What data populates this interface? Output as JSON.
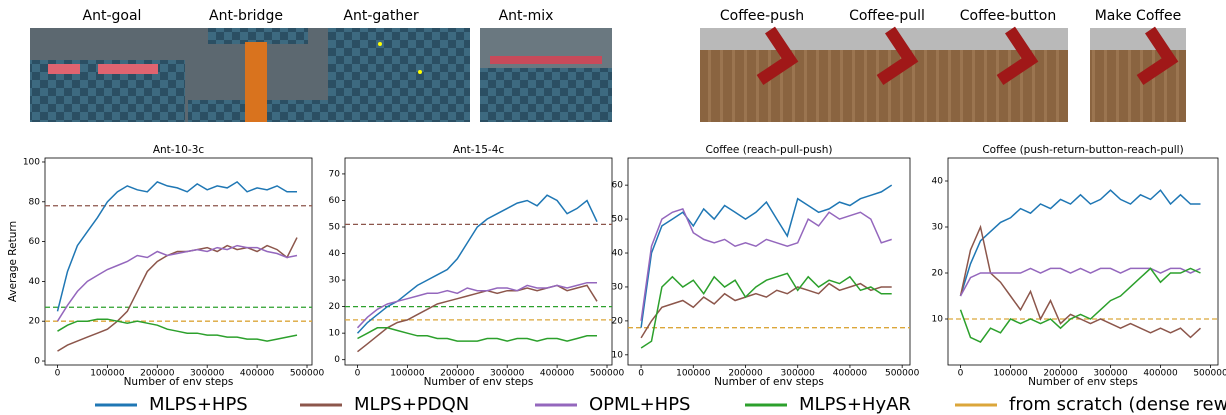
{
  "panels": [
    "Ant-goal",
    "Ant-bridge",
    "Ant-gather",
    "Ant-mix",
    "Coffee-push",
    "Coffee-pull",
    "Coffee-button",
    "Make Coffee"
  ],
  "legend": [
    {
      "name": "MLPS+HPS",
      "color": "#1f77b4"
    },
    {
      "name": "MLPS+PDQN",
      "color": "#8c564b"
    },
    {
      "name": "OPML+HPS",
      "color": "#9467bd"
    },
    {
      "name": "MLPS+HyAR",
      "color": "#2ca02c"
    },
    {
      "name": "from scratch (dense rew)",
      "color": "#dba63a"
    }
  ],
  "chart_data": [
    {
      "type": "line",
      "title": "Ant-10-3c",
      "xlabel": "Number of env steps",
      "ylabel": "Average Return",
      "x": [
        0,
        20000,
        40000,
        60000,
        80000,
        100000,
        120000,
        140000,
        160000,
        180000,
        200000,
        220000,
        240000,
        260000,
        280000,
        300000,
        320000,
        340000,
        360000,
        380000,
        400000,
        420000,
        440000,
        460000,
        480000
      ],
      "xlim": [
        -25000,
        510000
      ],
      "xticks": [
        0,
        100000,
        200000,
        300000,
        400000,
        500000
      ],
      "ylim": [
        -2,
        102
      ],
      "yticks": [
        0,
        20,
        40,
        60,
        80,
        100
      ],
      "series": [
        {
          "color": "#1f77b4",
          "values": [
            25,
            45,
            58,
            65,
            72,
            80,
            85,
            88,
            86,
            85,
            90,
            88,
            87,
            85,
            89,
            86,
            88,
            87,
            90,
            85,
            87,
            86,
            88,
            85,
            85
          ]
        },
        {
          "color": "#8c564b",
          "values": [
            5,
            8,
            10,
            12,
            14,
            16,
            20,
            25,
            35,
            45,
            50,
            53,
            55,
            55,
            56,
            57,
            55,
            58,
            56,
            57,
            55,
            58,
            56,
            52,
            62
          ]
        },
        {
          "color": "#9467bd",
          "values": [
            20,
            28,
            35,
            40,
            43,
            46,
            48,
            50,
            53,
            52,
            55,
            53,
            54,
            55,
            56,
            55,
            57,
            56,
            58,
            57,
            57,
            55,
            54,
            52,
            53
          ]
        },
        {
          "color": "#2ca02c",
          "values": [
            15,
            18,
            20,
            20,
            21,
            21,
            20,
            19,
            20,
            19,
            18,
            16,
            15,
            14,
            14,
            13,
            13,
            12,
            12,
            11,
            11,
            10,
            11,
            12,
            13
          ]
        }
      ],
      "reference_lines": [
        {
          "value": 78,
          "color": "#8c564b"
        },
        {
          "value": 27,
          "color": "#2ca02c"
        },
        {
          "value": 20,
          "color": "#dba63a"
        }
      ]
    },
    {
      "type": "line",
      "title": "Ant-15-4c",
      "xlabel": "Number of env steps",
      "x": [
        0,
        20000,
        40000,
        60000,
        80000,
        100000,
        120000,
        140000,
        160000,
        180000,
        200000,
        220000,
        240000,
        260000,
        280000,
        300000,
        320000,
        340000,
        360000,
        380000,
        400000,
        420000,
        440000,
        460000,
        480000
      ],
      "xlim": [
        -25000,
        510000
      ],
      "xticks": [
        0,
        100000,
        200000,
        300000,
        400000,
        500000
      ],
      "ylim": [
        -2,
        76
      ],
      "yticks": [
        0,
        10,
        20,
        30,
        40,
        50,
        60,
        70
      ],
      "series": [
        {
          "color": "#1f77b4",
          "values": [
            10,
            14,
            17,
            20,
            22,
            25,
            28,
            30,
            32,
            34,
            38,
            44,
            50,
            53,
            55,
            57,
            59,
            60,
            58,
            62,
            60,
            55,
            57,
            60,
            52
          ]
        },
        {
          "color": "#8c564b",
          "values": [
            3,
            6,
            9,
            12,
            14,
            15,
            17,
            19,
            21,
            22,
            23,
            24,
            25,
            26,
            25,
            26,
            26,
            27,
            26,
            27,
            28,
            26,
            27,
            28,
            22
          ]
        },
        {
          "color": "#9467bd",
          "values": [
            12,
            16,
            19,
            21,
            22,
            23,
            24,
            25,
            25,
            26,
            25,
            27,
            26,
            26,
            27,
            27,
            26,
            28,
            27,
            27,
            28,
            27,
            28,
            29,
            29
          ]
        },
        {
          "color": "#2ca02c",
          "values": [
            8,
            10,
            12,
            12,
            11,
            10,
            9,
            9,
            8,
            8,
            7,
            7,
            7,
            8,
            8,
            7,
            8,
            8,
            7,
            8,
            8,
            7,
            8,
            9,
            9
          ]
        }
      ],
      "reference_lines": [
        {
          "value": 51,
          "color": "#8c564b"
        },
        {
          "value": 20,
          "color": "#2ca02c"
        },
        {
          "value": 15,
          "color": "#dba63a"
        }
      ]
    },
    {
      "type": "line",
      "title": "Coffee (reach-pull-push)",
      "xlabel": "Number of env steps",
      "x": [
        0,
        20000,
        40000,
        60000,
        80000,
        100000,
        120000,
        140000,
        160000,
        180000,
        200000,
        220000,
        240000,
        260000,
        280000,
        300000,
        320000,
        340000,
        360000,
        380000,
        400000,
        420000,
        440000,
        460000,
        480000
      ],
      "xlim": [
        -25000,
        515000
      ],
      "xticks": [
        0,
        100000,
        200000,
        300000,
        400000,
        500000
      ],
      "ylim": [
        7,
        68
      ],
      "yticks": [
        10,
        20,
        30,
        40,
        50,
        60
      ],
      "series": [
        {
          "color": "#1f77b4",
          "values": [
            18,
            40,
            48,
            50,
            52,
            48,
            53,
            50,
            54,
            52,
            50,
            52,
            55,
            50,
            45,
            56,
            54,
            52,
            53,
            55,
            54,
            56,
            57,
            58,
            60
          ]
        },
        {
          "color": "#8c564b",
          "values": [
            15,
            20,
            24,
            25,
            26,
            24,
            27,
            25,
            28,
            26,
            27,
            28,
            27,
            29,
            28,
            30,
            29,
            28,
            31,
            29,
            30,
            31,
            29,
            30,
            30
          ]
        },
        {
          "color": "#9467bd",
          "values": [
            20,
            42,
            50,
            52,
            53,
            46,
            44,
            43,
            44,
            42,
            43,
            42,
            44,
            43,
            42,
            43,
            50,
            48,
            52,
            50,
            51,
            52,
            50,
            43,
            44
          ]
        },
        {
          "color": "#2ca02c",
          "values": [
            12,
            14,
            30,
            33,
            30,
            32,
            28,
            33,
            30,
            32,
            27,
            30,
            32,
            33,
            34,
            29,
            33,
            30,
            32,
            31,
            33,
            29,
            30,
            28,
            28
          ]
        }
      ],
      "reference_lines": [
        {
          "value": 18,
          "color": "#dba63a"
        }
      ]
    },
    {
      "type": "line",
      "title": "Coffee (push-return-button-reach-pull)",
      "xlabel": "Number of env steps",
      "x": [
        0,
        20000,
        40000,
        60000,
        80000,
        100000,
        120000,
        140000,
        160000,
        180000,
        200000,
        220000,
        240000,
        260000,
        280000,
        300000,
        320000,
        340000,
        360000,
        380000,
        400000,
        420000,
        440000,
        460000,
        480000
      ],
      "xlim": [
        -25000,
        515000
      ],
      "xticks": [
        0,
        100000,
        200000,
        300000,
        400000,
        500000
      ],
      "ylim": [
        0,
        45
      ],
      "yticks": [
        10,
        20,
        30,
        40
      ],
      "series": [
        {
          "color": "#1f77b4",
          "values": [
            15,
            22,
            27,
            29,
            31,
            32,
            34,
            33,
            35,
            34,
            36,
            35,
            37,
            35,
            36,
            38,
            36,
            35,
            37,
            36,
            38,
            35,
            37,
            35,
            35
          ]
        },
        {
          "color": "#8c564b",
          "values": [
            15,
            25,
            30,
            20,
            18,
            15,
            12,
            16,
            10,
            14,
            9,
            11,
            10,
            9,
            10,
            9,
            8,
            9,
            8,
            7,
            8,
            7,
            8,
            6,
            8
          ]
        },
        {
          "color": "#9467bd",
          "values": [
            15,
            19,
            20,
            20,
            20,
            20,
            20,
            21,
            20,
            21,
            21,
            20,
            21,
            20,
            21,
            21,
            20,
            21,
            21,
            21,
            20,
            21,
            21,
            20,
            21
          ]
        },
        {
          "color": "#2ca02c",
          "values": [
            12,
            6,
            5,
            8,
            7,
            10,
            9,
            10,
            9,
            10,
            8,
            10,
            11,
            10,
            12,
            14,
            15,
            17,
            19,
            21,
            18,
            20,
            20,
            21,
            20
          ]
        }
      ],
      "reference_lines": [
        {
          "value": 10,
          "color": "#dba63a"
        }
      ]
    }
  ]
}
